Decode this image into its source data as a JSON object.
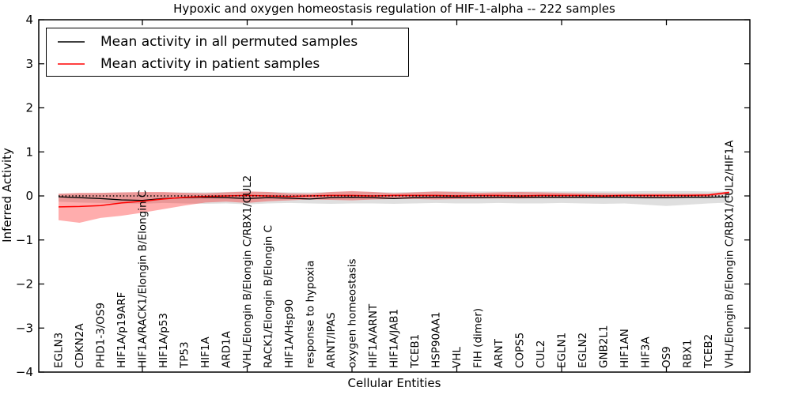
{
  "chart_data": {
    "type": "line",
    "title": "Hypoxic and oxygen homeostasis regulation of HIF-1-alpha -- 222 samples",
    "xlabel": "Cellular Entities",
    "ylabel": "Inferred Activity",
    "ylim": [
      -4,
      4
    ],
    "grid": false,
    "legend_position": "upper left",
    "ytick_values": [
      4,
      3,
      2,
      1,
      0,
      -1,
      -2,
      -3,
      -4
    ],
    "ytick_labels": [
      "4",
      "3",
      "2",
      "1",
      "0",
      "−1",
      "−2",
      "−3",
      "−4"
    ],
    "x_major_tick_indices": [
      4,
      9,
      14,
      19,
      24,
      29
    ],
    "zero_reference_line": 0,
    "categories": [
      "EGLN3",
      "CDKN2A",
      "PHD1-3/OS9",
      "HIF1A/p19ARF",
      "HIF1A/RACK1/Elongin B/Elongin C",
      "HIF1A/p53",
      "TP53",
      "HIF1A",
      "ARD1A",
      "VHL/Elongin B/Elongin C/RBX1/CUL2",
      "RACK1/Elongin B/Elongin C",
      "HIF1A/Hsp90",
      "response to hypoxia",
      "ARNT/IPAS",
      "oxygen homeostasis",
      "HIF1A/ARNT",
      "HIF1A/JAB1",
      "TCEB1",
      "HSP90AA1",
      "VHL",
      "FIH (dimer)",
      "ARNT",
      "COPS5",
      "CUL2",
      "EGLN1",
      "EGLN2",
      "GNB2L1",
      "HIF1AN",
      "HIF3A",
      "OS9",
      "RBX1",
      "TCEB2",
      "VHL/Elongin B/Elongin C/RBX1/CUL2/HIF1A"
    ],
    "series": [
      {
        "name": "Mean activity in all permuted samples",
        "color": "#000000",
        "band_color": "rgba(110,110,110,0.22)",
        "values": [
          -0.02,
          -0.04,
          -0.06,
          -0.09,
          -0.1,
          -0.06,
          -0.04,
          -0.03,
          -0.04,
          -0.06,
          -0.04,
          -0.05,
          -0.07,
          -0.04,
          -0.03,
          -0.04,
          -0.06,
          -0.04,
          -0.03,
          -0.03,
          -0.04,
          -0.03,
          -0.03,
          -0.03,
          -0.03,
          -0.03,
          -0.03,
          -0.03,
          -0.04,
          -0.04,
          -0.03,
          -0.03,
          -0.02
        ],
        "band_upper": [
          0.05,
          0.06,
          0.07,
          0.08,
          0.08,
          0.08,
          0.08,
          0.08,
          0.09,
          0.1,
          0.09,
          0.08,
          0.08,
          0.09,
          0.1,
          0.09,
          0.08,
          0.09,
          0.1,
          0.1,
          0.1,
          0.1,
          0.1,
          0.1,
          0.1,
          0.1,
          0.1,
          0.1,
          0.11,
          0.11,
          0.11,
          0.1,
          0.1
        ],
        "band_lower": [
          -0.13,
          -0.15,
          -0.16,
          -0.17,
          -0.18,
          -0.16,
          -0.17,
          -0.18,
          -0.17,
          -0.19,
          -0.17,
          -0.16,
          -0.17,
          -0.18,
          -0.17,
          -0.17,
          -0.18,
          -0.17,
          -0.16,
          -0.17,
          -0.17,
          -0.16,
          -0.17,
          -0.17,
          -0.16,
          -0.17,
          -0.18,
          -0.17,
          -0.2,
          -0.23,
          -0.2,
          -0.17,
          -0.15
        ]
      },
      {
        "name": "Mean activity in patient samples",
        "color": "#ff0000",
        "band_color": "rgba(255,0,0,0.32)",
        "values": [
          -0.25,
          -0.24,
          -0.22,
          -0.16,
          -0.12,
          -0.07,
          -0.03,
          -0.01,
          0.0,
          0.01,
          0.0,
          -0.01,
          0.0,
          0.01,
          0.01,
          0.0,
          0.01,
          0.01,
          0.01,
          0.0,
          0.01,
          0.01,
          0.0,
          0.01,
          0.01,
          0.01,
          0.0,
          0.01,
          0.01,
          0.01,
          0.01,
          0.02,
          0.08
        ],
        "band_upper": [
          0.05,
          0.07,
          0.07,
          0.08,
          0.09,
          0.09,
          0.07,
          0.06,
          0.08,
          0.1,
          0.09,
          0.06,
          0.05,
          0.09,
          0.11,
          0.09,
          0.06,
          0.08,
          0.1,
          0.09,
          0.07,
          0.08,
          0.09,
          0.08,
          0.07,
          0.06,
          0.06,
          0.05,
          0.05,
          0.05,
          0.05,
          0.05,
          0.1
        ],
        "band_lower": [
          -0.55,
          -0.61,
          -0.5,
          -0.45,
          -0.38,
          -0.3,
          -0.22,
          -0.15,
          -0.13,
          -0.16,
          -0.12,
          -0.1,
          -0.08,
          -0.09,
          -0.1,
          -0.08,
          -0.07,
          -0.07,
          -0.08,
          -0.07,
          -0.06,
          -0.06,
          -0.06,
          -0.05,
          -0.05,
          -0.05,
          -0.04,
          -0.04,
          -0.04,
          -0.04,
          -0.03,
          -0.02,
          0.05
        ]
      }
    ]
  }
}
